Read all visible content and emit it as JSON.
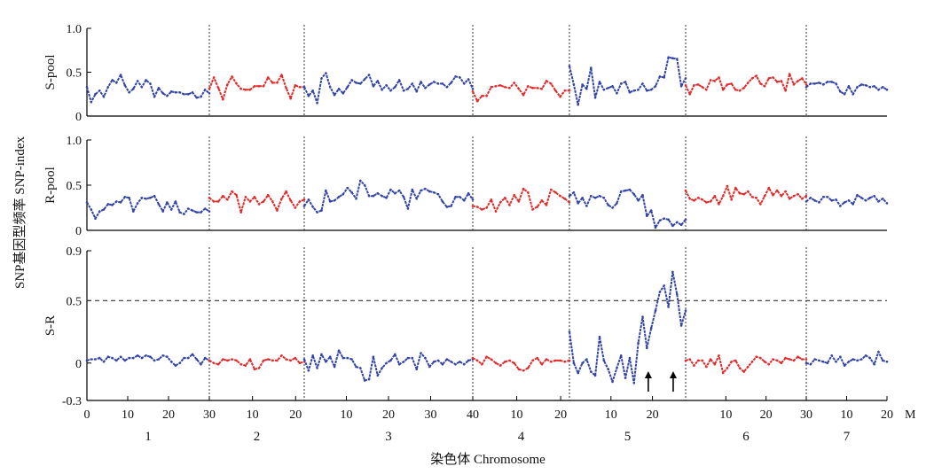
{
  "chart_data": {
    "type": "line",
    "y_axis_title": "SNP基因型频率 SNP-index",
    "x_axis_title": "染色体 Chromosome",
    "x_unit": "M",
    "chromosomes": [
      {
        "id": "1",
        "label": "1",
        "length": 30,
        "color": "#3344a8",
        "tick_labels": [
          "0",
          "10",
          "20",
          "30"
        ]
      },
      {
        "id": "2",
        "label": "2",
        "length": 22,
        "color": "#e22b2b",
        "tick_labels": [
          "10",
          "20"
        ]
      },
      {
        "id": "3",
        "label": "3",
        "length": 40,
        "color": "#3344a8",
        "tick_labels": [
          "10",
          "20",
          "30",
          "40"
        ]
      },
      {
        "id": "4",
        "label": "4",
        "length": 22,
        "color": "#e22b2b",
        "tick_labels": [
          "10",
          "20"
        ]
      },
      {
        "id": "5",
        "label": "5",
        "length": 28,
        "color": "#3344a8",
        "tick_labels": [
          "10",
          "20"
        ]
      },
      {
        "id": "6",
        "label": "6",
        "length": 30,
        "color": "#e22b2b",
        "tick_labels": [
          "10",
          "20",
          "30"
        ]
      },
      {
        "id": "7",
        "label": "7",
        "length": 20,
        "color": "#3344a8",
        "tick_labels": [
          "10",
          "20"
        ]
      }
    ],
    "panels": [
      {
        "id": "s-pool",
        "ylabel": "S-pool",
        "ylim": [
          0,
          1.0
        ],
        "yticks": [
          "0",
          "0.5",
          "1.0"
        ],
        "ytick_values": [
          0,
          0.5,
          1.0
        ],
        "threshold": null,
        "series": [
          {
            "chrom": "1",
            "y": [
              0.33,
              0.16,
              0.25,
              0.29,
              0.22,
              0.33,
              0.41,
              0.38,
              0.47,
              0.35,
              0.27,
              0.31,
              0.4,
              0.33,
              0.41,
              0.37,
              0.22,
              0.32,
              0.26,
              0.23,
              0.28,
              0.27,
              0.27,
              0.25,
              0.25,
              0.27,
              0.21,
              0.22,
              0.3,
              0.26
            ]
          },
          {
            "chrom": "2",
            "y": [
              0.31,
              0.44,
              0.32,
              0.19,
              0.36,
              0.45,
              0.37,
              0.31,
              0.3,
              0.3,
              0.34,
              0.34,
              0.34,
              0.44,
              0.38,
              0.38,
              0.47,
              0.32,
              0.2,
              0.35,
              0.33,
              0.33
            ]
          },
          {
            "chrom": "3",
            "y": [
              0.33,
              0.23,
              0.29,
              0.15,
              0.43,
              0.49,
              0.33,
              0.24,
              0.31,
              0.26,
              0.33,
              0.41,
              0.38,
              0.37,
              0.42,
              0.47,
              0.34,
              0.4,
              0.3,
              0.35,
              0.29,
              0.33,
              0.41,
              0.29,
              0.31,
              0.37,
              0.28,
              0.39,
              0.32,
              0.36,
              0.39,
              0.37,
              0.37,
              0.33,
              0.38,
              0.45,
              0.44,
              0.37,
              0.42,
              0.31
            ]
          },
          {
            "chrom": "4",
            "y": [
              0.28,
              0.17,
              0.23,
              0.23,
              0.33,
              0.34,
              0.35,
              0.33,
              0.32,
              0.38,
              0.31,
              0.24,
              0.34,
              0.32,
              0.32,
              0.31,
              0.4,
              0.37,
              0.29,
              0.22,
              0.29,
              0.29
            ]
          },
          {
            "chrom": "5",
            "y": [
              0.57,
              0.36,
              0.13,
              0.36,
              0.31,
              0.55,
              0.21,
              0.39,
              0.3,
              0.32,
              0.34,
              0.26,
              0.37,
              0.39,
              0.27,
              0.29,
              0.3,
              0.37,
              0.29,
              0.3,
              0.34,
              0.45,
              0.44,
              0.67,
              0.66,
              0.65,
              0.34,
              0.43
            ]
          },
          {
            "chrom": "6",
            "y": [
              0.35,
              0.25,
              0.35,
              0.36,
              0.33,
              0.3,
              0.41,
              0.4,
              0.44,
              0.3,
              0.36,
              0.37,
              0.3,
              0.29,
              0.32,
              0.38,
              0.43,
              0.46,
              0.37,
              0.34,
              0.43,
              0.44,
              0.39,
              0.4,
              0.29,
              0.48,
              0.36,
              0.4,
              0.43,
              0.36
            ]
          },
          {
            "chrom": "7",
            "y": [
              0.33,
              0.37,
              0.37,
              0.38,
              0.36,
              0.39,
              0.39,
              0.37,
              0.28,
              0.25,
              0.34,
              0.25,
              0.33,
              0.36,
              0.35,
              0.33,
              0.34,
              0.3,
              0.33,
              0.3
            ]
          }
        ]
      },
      {
        "id": "r-pool",
        "ylabel": "R-pool",
        "ylim": [
          0,
          1.0
        ],
        "yticks": [
          "0",
          "0.5",
          "1.0"
        ],
        "ytick_values": [
          0,
          0.5,
          1.0
        ],
        "threshold": null,
        "series": [
          {
            "chrom": "1",
            "y": [
              0.31,
              0.23,
              0.13,
              0.21,
              0.23,
              0.29,
              0.28,
              0.32,
              0.31,
              0.37,
              0.36,
              0.21,
              0.3,
              0.36,
              0.35,
              0.36,
              0.38,
              0.29,
              0.21,
              0.31,
              0.23,
              0.32,
              0.2,
              0.18,
              0.24,
              0.22,
              0.2,
              0.2,
              0.24,
              0.21
            ]
          },
          {
            "chrom": "2",
            "y": [
              0.36,
              0.32,
              0.32,
              0.38,
              0.34,
              0.43,
              0.39,
              0.2,
              0.37,
              0.32,
              0.37,
              0.29,
              0.32,
              0.39,
              0.32,
              0.22,
              0.35,
              0.43,
              0.33,
              0.25,
              0.32,
              0.34
            ]
          },
          {
            "chrom": "3",
            "y": [
              0.27,
              0.34,
              0.26,
              0.2,
              0.22,
              0.44,
              0.32,
              0.33,
              0.37,
              0.4,
              0.47,
              0.42,
              0.35,
              0.55,
              0.5,
              0.38,
              0.38,
              0.41,
              0.38,
              0.36,
              0.45,
              0.41,
              0.44,
              0.37,
              0.24,
              0.45,
              0.35,
              0.44,
              0.46,
              0.43,
              0.42,
              0.4,
              0.32,
              0.26,
              0.27,
              0.37,
              0.37,
              0.33,
              0.41,
              0.34
            ]
          },
          {
            "chrom": "4",
            "y": [
              0.27,
              0.26,
              0.23,
              0.25,
              0.34,
              0.21,
              0.31,
              0.36,
              0.28,
              0.39,
              0.32,
              0.46,
              0.42,
              0.23,
              0.26,
              0.33,
              0.28,
              0.45,
              0.42,
              0.38,
              0.35,
              0.31
            ]
          },
          {
            "chrom": "5",
            "y": [
              0.38,
              0.42,
              0.3,
              0.36,
              0.27,
              0.38,
              0.36,
              0.38,
              0.36,
              0.28,
              0.25,
              0.3,
              0.43,
              0.44,
              0.45,
              0.4,
              0.33,
              0.39,
              0.16,
              0.22,
              0.03,
              0.11,
              0.13,
              0.12,
              0.05,
              0.09,
              0.06,
              0.12
            ]
          },
          {
            "chrom": "6",
            "y": [
              0.44,
              0.35,
              0.33,
              0.36,
              0.34,
              0.31,
              0.32,
              0.38,
              0.29,
              0.38,
              0.49,
              0.34,
              0.47,
              0.41,
              0.4,
              0.43,
              0.37,
              0.36,
              0.29,
              0.38,
              0.47,
              0.39,
              0.44,
              0.38,
              0.43,
              0.35,
              0.38,
              0.4,
              0.35,
              0.38
            ]
          },
          {
            "chrom": "7",
            "y": [
              0.32,
              0.36,
              0.33,
              0.31,
              0.37,
              0.37,
              0.33,
              0.34,
              0.27,
              0.31,
              0.33,
              0.29,
              0.39,
              0.36,
              0.33,
              0.36,
              0.38,
              0.32,
              0.35,
              0.3
            ]
          }
        ]
      },
      {
        "id": "s-r",
        "ylabel": "S-R",
        "ylim": [
          -0.3,
          0.9
        ],
        "yticks": [
          "-0.3",
          "0",
          "0.5",
          "0.9"
        ],
        "ytick_values": [
          -0.3,
          0,
          0.5,
          0.9
        ],
        "threshold": 0.5,
        "series": [
          {
            "chrom": "1",
            "y": [
              0.02,
              0.03,
              0.03,
              0.04,
              0.01,
              0.05,
              0.04,
              0.02,
              0.05,
              0.02,
              0.04,
              0.04,
              0.06,
              0.04,
              0.06,
              0.05,
              0.02,
              0.03,
              0.06,
              0.05,
              0.01,
              -0.02,
              0.0,
              0.04,
              0.04,
              0.07,
              0.03,
              -0.01,
              0.04,
              0.02
            ]
          },
          {
            "chrom": "2",
            "y": [
              0.02,
              0.0,
              -0.01,
              0.03,
              0.02,
              0.03,
              0.02,
              -0.01,
              -0.02,
              0.03,
              -0.05,
              -0.04,
              0.02,
              0.03,
              0.02,
              0.02,
              0.06,
              0.03,
              0.02,
              0.04,
              0.0,
              0.01
            ]
          },
          {
            "chrom": "3",
            "y": [
              0.03,
              -0.06,
              0.06,
              -0.04,
              0.07,
              0.01,
              0.05,
              -0.03,
              0.1,
              0.04,
              0.04,
              0.03,
              -0.03,
              -0.04,
              -0.14,
              -0.13,
              0.05,
              -0.1,
              -0.04,
              0.0,
              0.02,
              0.07,
              -0.01,
              0.01,
              0.04,
              0.04,
              -0.05,
              0.08,
              0.04,
              -0.03,
              0.01,
              0.02,
              -0.01,
              0.03,
              0.01,
              -0.01,
              0.01,
              -0.01,
              0.02,
              0.03
            ]
          },
          {
            "chrom": "4",
            "y": [
              0.04,
              0.02,
              -0.01,
              0.05,
              0.03,
              0.0,
              -0.02,
              0.01,
              0.02,
              0.0,
              -0.05,
              -0.06,
              -0.04,
              0.02,
              0.04,
              -0.01,
              0.03,
              0.01,
              0.02,
              0.02,
              0.01,
              0.02
            ]
          },
          {
            "chrom": "5",
            "y": [
              0.25,
              0.0,
              -0.08,
              -0.0,
              0.03,
              -0.07,
              -0.1,
              0.21,
              0.02,
              -0.05,
              -0.15,
              -0.04,
              0.06,
              -0.12,
              0.04,
              -0.16,
              0.16,
              0.37,
              0.12,
              0.28,
              0.42,
              0.57,
              0.62,
              0.45,
              0.73,
              0.55,
              0.3,
              0.42
            ]
          },
          {
            "chrom": "6",
            "y": [
              0.02,
              0.03,
              -0.02,
              0.02,
              0.02,
              -0.03,
              0.03,
              -0.01,
              0.06,
              -0.08,
              -0.04,
              0.01,
              0.02,
              -0.04,
              -0.07,
              -0.03,
              0.01,
              0.05,
              0.04,
              0.01,
              -0.01,
              0.03,
              0.02,
              0.0,
              0.04,
              0.03,
              0.02,
              0.05,
              0.03,
              0.03
            ]
          },
          {
            "chrom": "7",
            "y": [
              0.0,
              -0.01,
              0.03,
              0.02,
              0.01,
              0.0,
              0.06,
              0.01,
              0.05,
              -0.02,
              0.01,
              0.03,
              0.02,
              0.03,
              0.06,
              0.04,
              -0.01,
              0.09,
              0.02,
              0.01
            ]
          }
        ],
        "annotations": [
          {
            "type": "arrow",
            "chrom": "5",
            "x": 19
          },
          {
            "type": "arrow",
            "chrom": "5",
            "x": 25
          }
        ]
      }
    ]
  }
}
